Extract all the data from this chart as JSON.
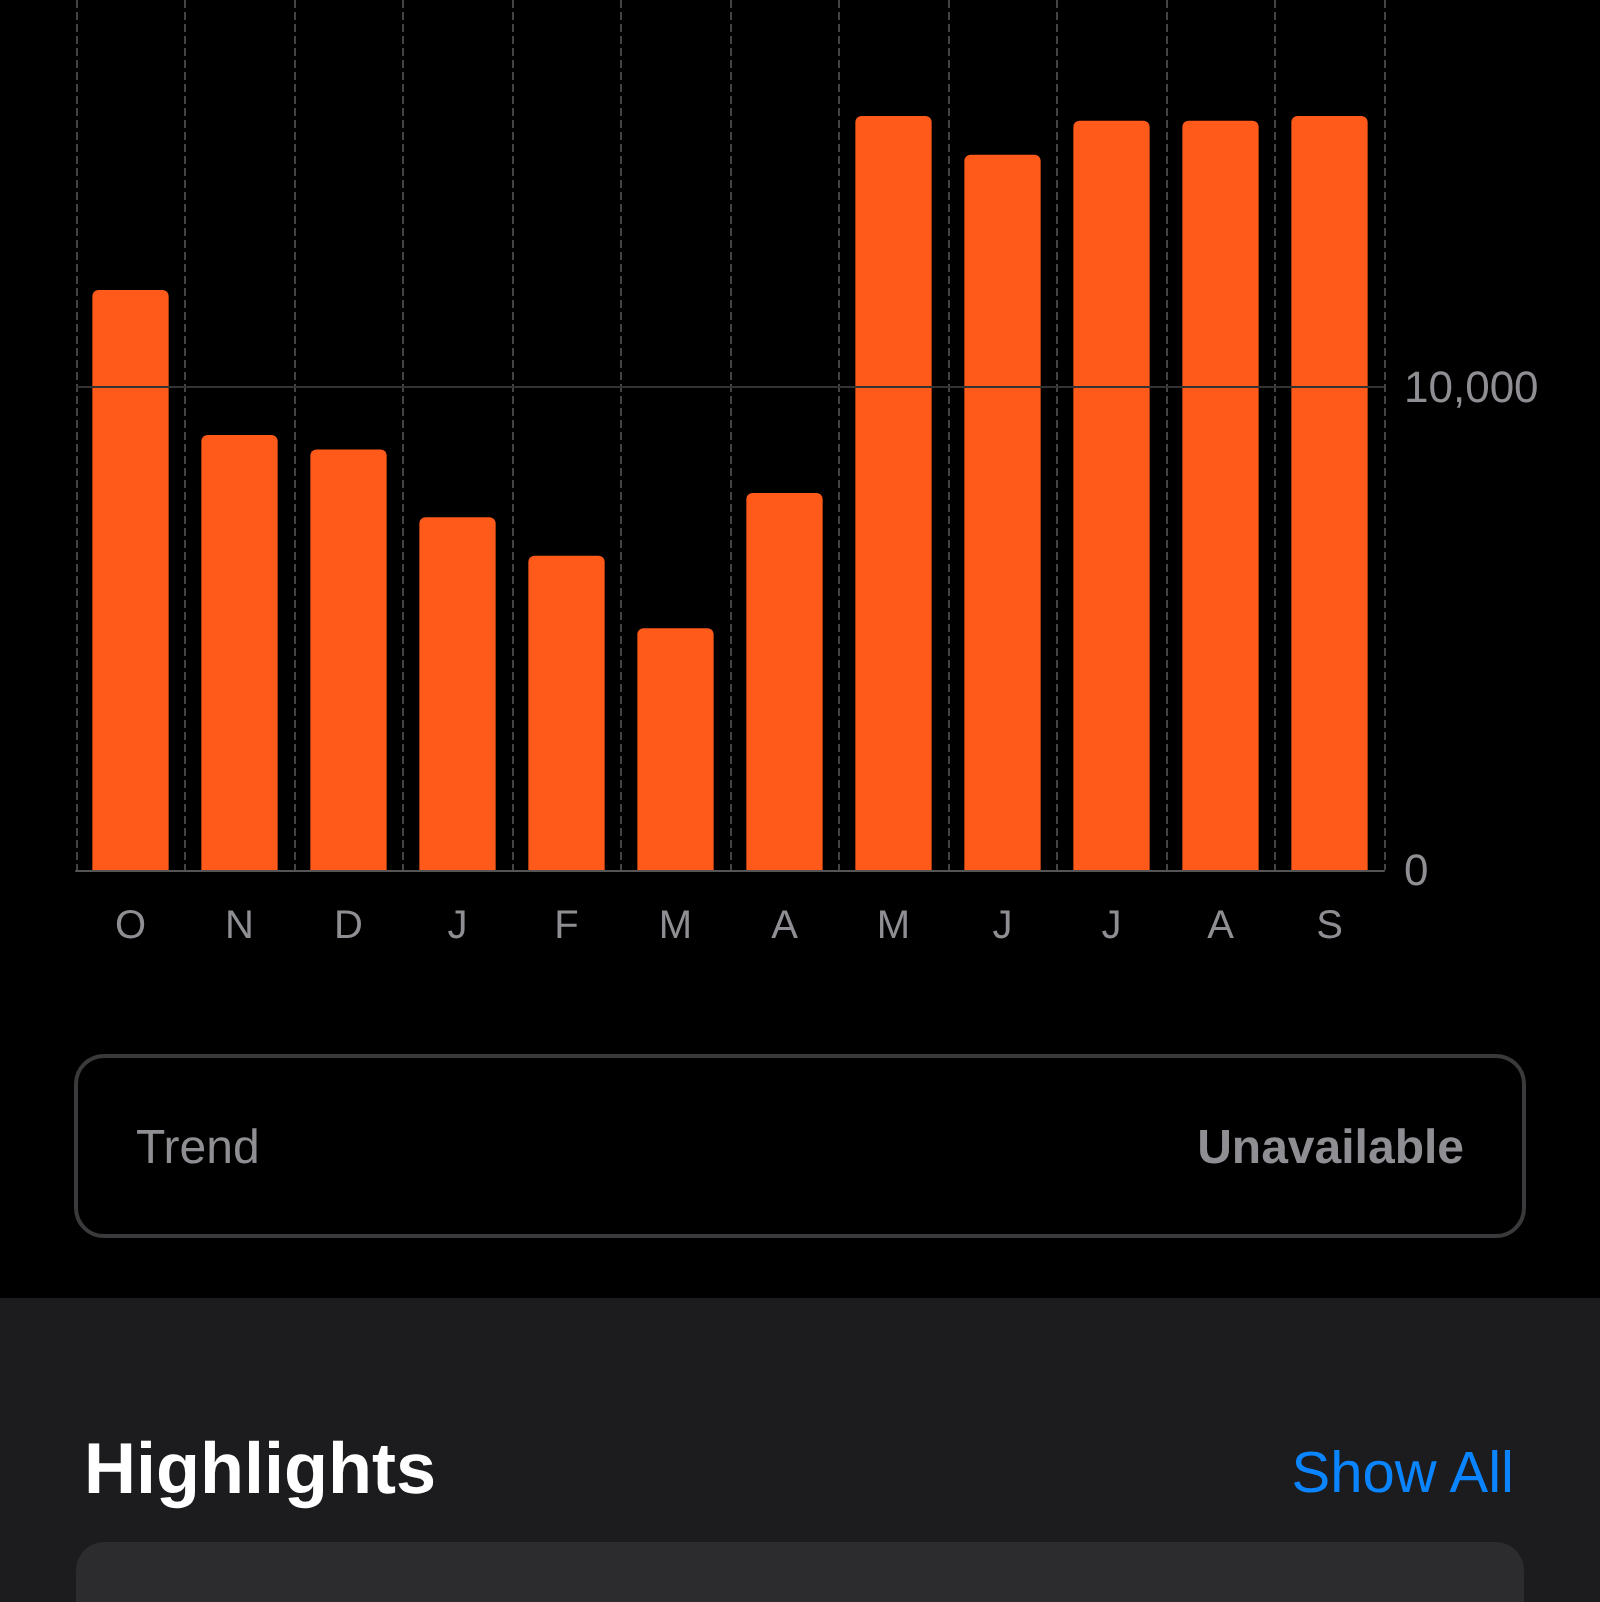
{
  "chart_data": {
    "type": "bar",
    "categories": [
      "O",
      "N",
      "D",
      "J",
      "F",
      "M",
      "A",
      "M",
      "J",
      "J",
      "A",
      "S"
    ],
    "values": [
      12000,
      9000,
      8700,
      7300,
      6500,
      5000,
      7800,
      15600,
      14800,
      15500,
      15500,
      15600
    ],
    "color": "#ff5a1a",
    "ylim": [
      0,
      18000
    ],
    "yticks": [
      0,
      {
        "value": 10000,
        "label": "10,000"
      }
    ],
    "grid": "x",
    "ref_lines": [
      {
        "axis": "y",
        "value": 10000,
        "color": "#333333"
      }
    ],
    "annotations": [
      "Trend",
      "Unavailable",
      "Highlights",
      "Show All"
    ]
  }
}
